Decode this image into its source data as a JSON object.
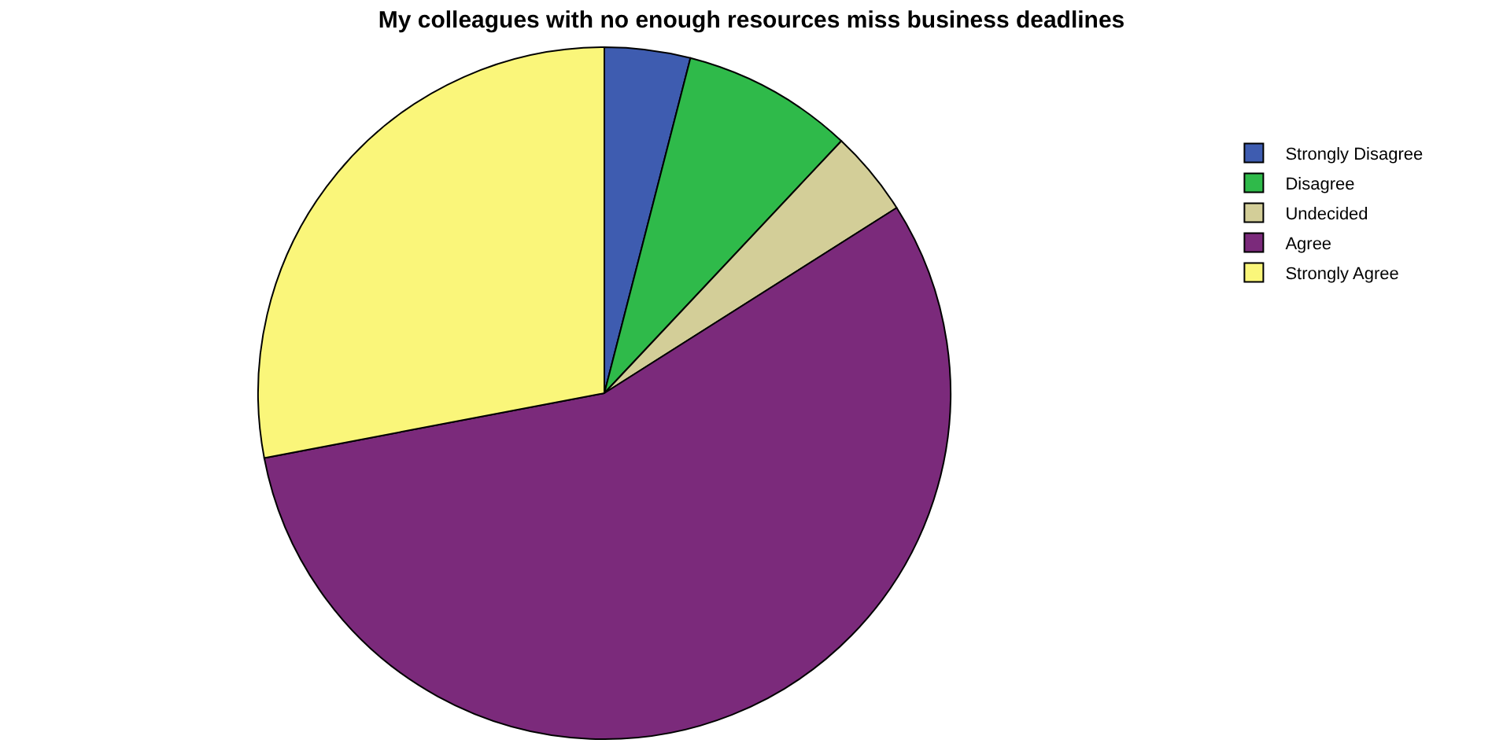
{
  "chart_data": {
    "type": "pie",
    "title": "My colleagues with no enough resources miss business deadlines",
    "categories": [
      "Strongly Disagree",
      "Disagree",
      "Undecided",
      "Agree",
      "Strongly Agree"
    ],
    "values": [
      4,
      8,
      4,
      56,
      28
    ],
    "colors": [
      "#3e5cb0",
      "#2fba4a",
      "#d3ce98",
      "#7b2a7b",
      "#faf67a"
    ],
    "legend": "top right"
  }
}
